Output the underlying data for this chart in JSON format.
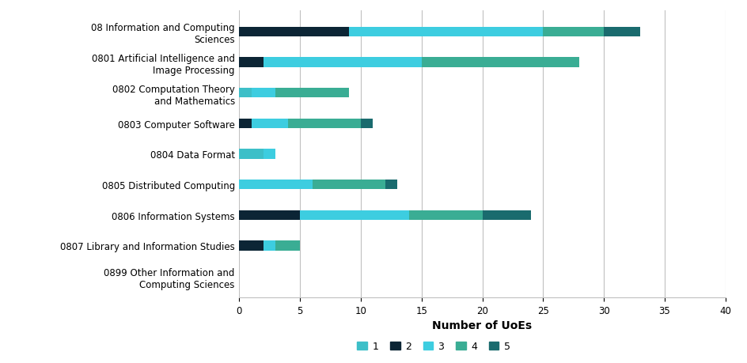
{
  "categories": [
    "08 Information and Computing\nSciences",
    "0801 Artificial Intelligence and\nImage Processing",
    "0802 Computation Theory\nand Mathematics",
    "0803 Computer Software",
    "0804 Data Format",
    "0805 Distributed Computing",
    "0806 Information Systems",
    "0807 Library and Information Studies",
    "0899 Other Information and\nComputing Sciences"
  ],
  "series": {
    "1": [
      0,
      0,
      1,
      0,
      2,
      0,
      0,
      0,
      0
    ],
    "2": [
      9,
      2,
      0,
      1,
      0,
      0,
      5,
      2,
      0
    ],
    "3": [
      16,
      13,
      2,
      3,
      1,
      6,
      9,
      1,
      0
    ],
    "4": [
      5,
      13,
      6,
      6,
      0,
      6,
      6,
      2,
      0
    ],
    "5": [
      3,
      0,
      0,
      1,
      0,
      1,
      4,
      0,
      0
    ]
  },
  "colors": {
    "1": "#3dbfc8",
    "2": "#0c2535",
    "3": "#3dcde0",
    "4": "#3aad94",
    "5": "#1a6b6e"
  },
  "xlabel": "Number of UoEs",
  "xlim": [
    0,
    40
  ],
  "xticks": [
    0,
    5,
    10,
    15,
    20,
    25,
    30,
    35,
    40
  ],
  "background_color": "#ffffff",
  "grid_color": "#c0c0c0",
  "bar_height": 0.32,
  "label_fontsize": 8.5,
  "axis_fontsize": 10,
  "legend_fontsize": 9
}
